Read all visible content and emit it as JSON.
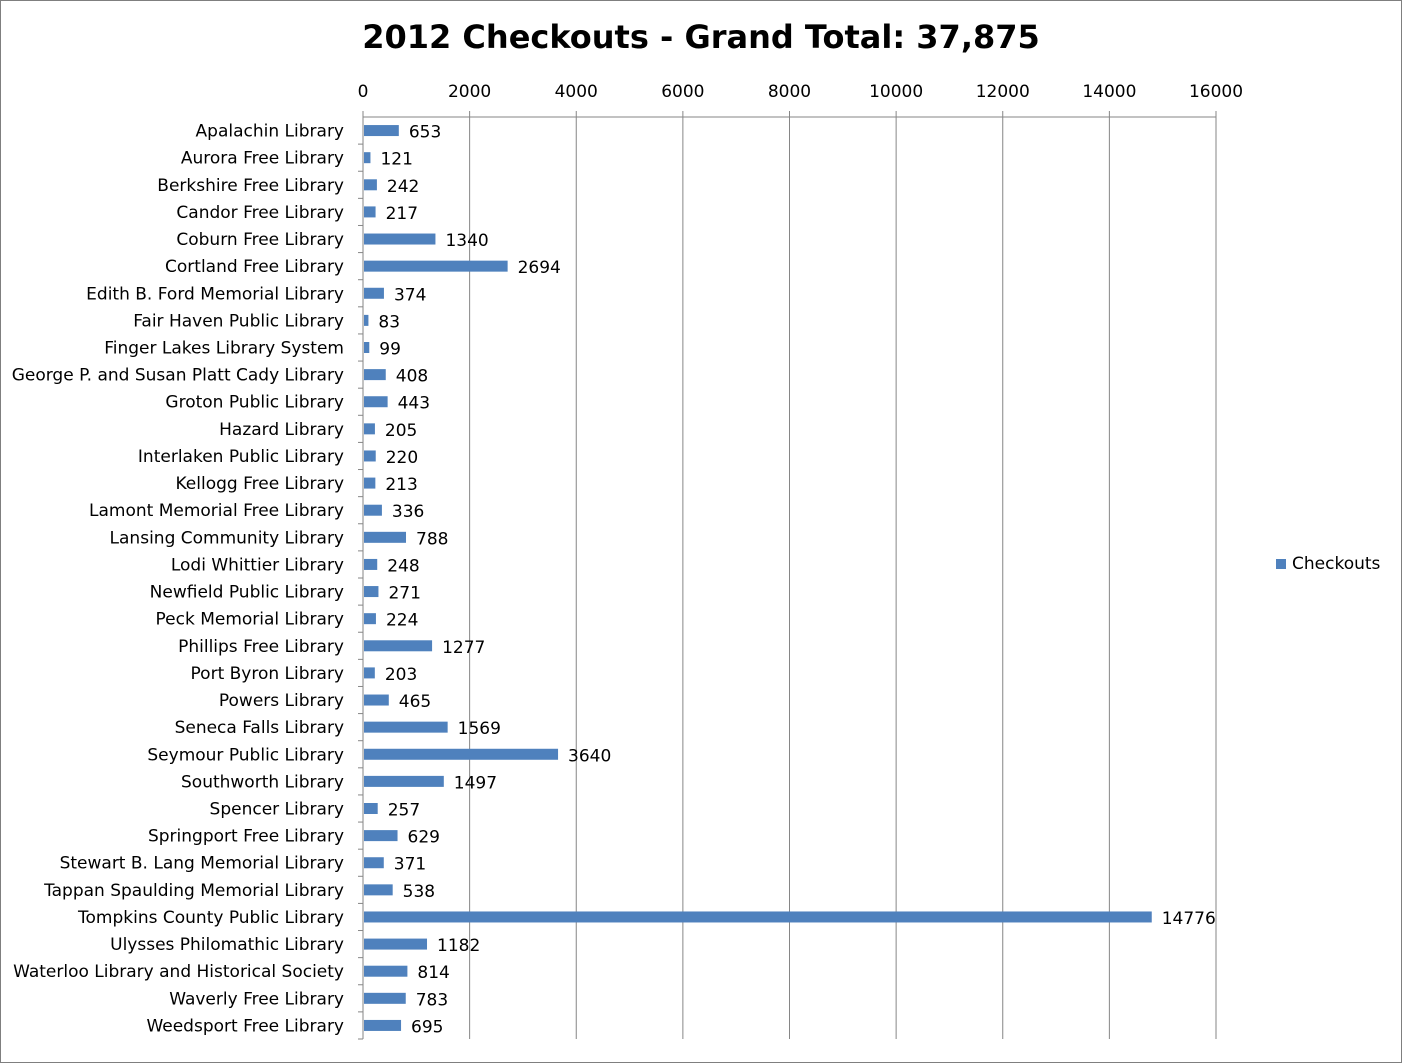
{
  "chart_data": {
    "type": "bar",
    "orientation": "horizontal",
    "title": "2012 Checkouts - Grand Total: 37,875",
    "xlim": [
      0,
      16000
    ],
    "x_ticks": [
      0,
      2000,
      4000,
      6000,
      8000,
      10000,
      12000,
      14000,
      16000
    ],
    "x_tick_labels": [
      "0",
      "2000",
      "4000",
      "6000",
      "8000",
      "10000",
      "12000",
      "14000",
      "16000"
    ],
    "x_axis_position": "top",
    "grid": "vertical major gridlines",
    "legend_position": "right",
    "bar_color": "#4F81BD",
    "categories": [
      "Apalachin Library",
      "Aurora Free Library",
      "Berkshire Free Library",
      "Candor Free Library",
      "Coburn Free Library",
      "Cortland Free Library",
      "Edith B. Ford Memorial Library",
      "Fair Haven Public Library",
      "Finger Lakes Library System",
      "George P. and Susan Platt Cady Library",
      "Groton Public Library",
      "Hazard Library",
      "Interlaken Public Library",
      "Kellogg Free Library",
      "Lamont Memorial Free Library",
      "Lansing Community Library",
      "Lodi Whittier Library",
      "Newfield Public Library",
      "Peck Memorial Library",
      "Phillips Free Library",
      "Port Byron Library",
      "Powers Library",
      "Seneca Falls Library",
      "Seymour Public Library",
      "Southworth Library",
      "Spencer Library",
      "Springport Free Library",
      "Stewart B. Lang Memorial Library",
      "Tappan Spaulding Memorial Library",
      "Tompkins County Public Library",
      "Ulysses Philomathic Library",
      "Waterloo Library and Historical Society",
      "Waverly Free Library",
      "Weedsport Free Library"
    ],
    "series": [
      {
        "name": "Checkouts",
        "values": [
          653,
          121,
          242,
          217,
          1340,
          2694,
          374,
          83,
          99,
          408,
          443,
          205,
          220,
          213,
          336,
          788,
          248,
          271,
          224,
          1277,
          203,
          465,
          1569,
          3640,
          1497,
          257,
          629,
          371,
          538,
          14776,
          1182,
          814,
          783,
          695
        ]
      }
    ]
  }
}
